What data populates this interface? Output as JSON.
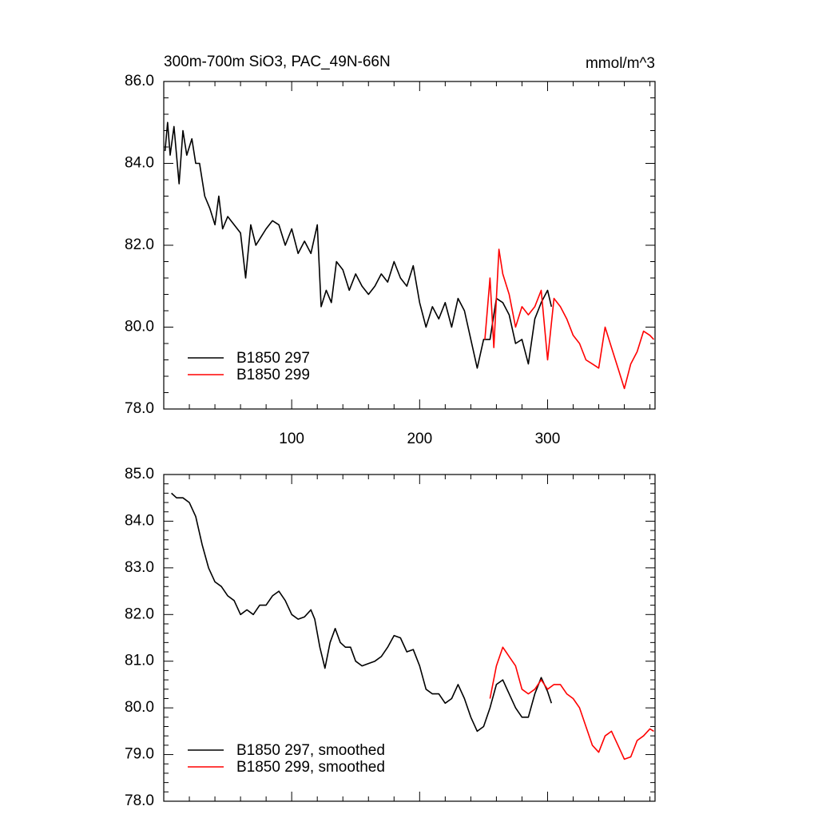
{
  "chart_data": [
    {
      "type": "line",
      "title": "300m-700m SiO3, PAC_49N-66N",
      "subtitle": "mmol/m^3",
      "xlim": [
        0,
        384
      ],
      "xticks": [
        100,
        200,
        300
      ],
      "xtick_labels": true,
      "ylim": [
        78,
        86
      ],
      "yticks": [
        {
          "value": 78,
          "label": "78.0"
        },
        {
          "value": 80,
          "label": "80.0"
        },
        {
          "value": 82,
          "label": "82.0"
        },
        {
          "value": 84,
          "label": "84.0"
        },
        {
          "value": 86,
          "label": "86.0"
        }
      ],
      "legend": "lower left",
      "series": [
        {
          "name": "B1850 297",
          "color": "#000000",
          "x": [
            1,
            3,
            5,
            8,
            12,
            15,
            18,
            22,
            25,
            28,
            32,
            36,
            40,
            43,
            46,
            50,
            55,
            60,
            64,
            68,
            72,
            76,
            80,
            85,
            90,
            95,
            100,
            105,
            110,
            115,
            120,
            123,
            127,
            131,
            135,
            140,
            145,
            150,
            155,
            160,
            165,
            170,
            175,
            180,
            185,
            190,
            195,
            200,
            205,
            210,
            215,
            220,
            225,
            230,
            235,
            240,
            245,
            250,
            255,
            260,
            265,
            270,
            275,
            280,
            285,
            290,
            295,
            300,
            303
          ],
          "values": [
            84.3,
            85.0,
            84.2,
            84.9,
            83.5,
            84.8,
            84.2,
            84.6,
            84.0,
            84.0,
            83.2,
            82.9,
            82.5,
            83.2,
            82.4,
            82.7,
            82.5,
            82.3,
            81.2,
            82.5,
            82.0,
            82.2,
            82.4,
            82.6,
            82.5,
            82.0,
            82.4,
            81.8,
            82.1,
            81.8,
            82.5,
            80.5,
            80.9,
            80.6,
            81.6,
            81.4,
            80.9,
            81.3,
            81.0,
            80.8,
            81.0,
            81.3,
            81.1,
            81.6,
            81.2,
            81.0,
            81.5,
            80.6,
            80.0,
            80.5,
            80.2,
            80.6,
            80.0,
            80.7,
            80.4,
            79.7,
            79.0,
            79.7,
            79.7,
            80.7,
            80.6,
            80.3,
            79.6,
            79.7,
            79.1,
            80.2,
            80.6,
            80.9,
            80.5
          ]
        },
        {
          "name": "B1850 299",
          "color": "#ff0000",
          "x": [
            251,
            255,
            258,
            262,
            265,
            270,
            275,
            280,
            285,
            290,
            295,
            300,
            305,
            310,
            315,
            320,
            325,
            330,
            335,
            340,
            345,
            350,
            355,
            360,
            365,
            370,
            375,
            380,
            383
          ],
          "values": [
            79.7,
            81.2,
            79.5,
            81.9,
            81.3,
            80.8,
            80.0,
            80.5,
            80.3,
            80.5,
            80.9,
            79.2,
            80.7,
            80.5,
            80.2,
            79.8,
            79.6,
            79.2,
            79.1,
            79.0,
            80.0,
            79.5,
            79.0,
            78.5,
            79.1,
            79.4,
            79.9,
            79.8,
            79.7
          ]
        }
      ]
    },
    {
      "type": "line",
      "xlim": [
        0,
        384
      ],
      "xticks": [
        100,
        200,
        300
      ],
      "xtick_labels": false,
      "ylim": [
        78,
        85
      ],
      "yticks": [
        {
          "value": 78,
          "label": "78.0"
        },
        {
          "value": 79,
          "label": "79.0"
        },
        {
          "value": 80,
          "label": "80.0"
        },
        {
          "value": 81,
          "label": "81.0"
        },
        {
          "value": 82,
          "label": "82.0"
        },
        {
          "value": 83,
          "label": "83.0"
        },
        {
          "value": 84,
          "label": "84.0"
        },
        {
          "value": 85,
          "label": "85.0"
        }
      ],
      "legend": "lower left",
      "series": [
        {
          "name": "B1850 297, smoothed",
          "color": "#000000",
          "x": [
            6,
            10,
            15,
            20,
            25,
            30,
            35,
            40,
            45,
            50,
            55,
            60,
            65,
            70,
            75,
            80,
            85,
            90,
            95,
            100,
            105,
            110,
            115,
            118,
            122,
            126,
            130,
            134,
            138,
            142,
            146,
            150,
            155,
            160,
            165,
            170,
            175,
            180,
            185,
            190,
            195,
            200,
            205,
            210,
            215,
            220,
            225,
            230,
            235,
            240,
            245,
            250,
            255,
            260,
            265,
            270,
            275,
            280,
            285,
            290,
            295,
            300,
            303
          ],
          "values": [
            84.6,
            84.5,
            84.5,
            84.4,
            84.1,
            83.5,
            83.0,
            82.7,
            82.6,
            82.4,
            82.3,
            82.0,
            82.1,
            82.0,
            82.2,
            82.2,
            82.4,
            82.5,
            82.3,
            82.0,
            81.9,
            81.95,
            82.1,
            81.9,
            81.3,
            80.85,
            81.4,
            81.7,
            81.4,
            81.3,
            81.3,
            81.0,
            80.9,
            80.95,
            81.0,
            81.1,
            81.3,
            81.55,
            81.5,
            81.2,
            81.25,
            80.9,
            80.4,
            80.3,
            80.3,
            80.1,
            80.2,
            80.5,
            80.2,
            79.8,
            79.5,
            79.6,
            80.0,
            80.5,
            80.6,
            80.3,
            80.0,
            79.8,
            79.8,
            80.3,
            80.65,
            80.35,
            80.1
          ]
        },
        {
          "name": "B1850 299, smoothed",
          "color": "#ff0000",
          "x": [
            255,
            260,
            265,
            270,
            275,
            280,
            285,
            290,
            295,
            300,
            305,
            310,
            315,
            320,
            325,
            330,
            335,
            340,
            345,
            350,
            355,
            360,
            365,
            370,
            375,
            380,
            383
          ],
          "values": [
            80.2,
            80.9,
            81.3,
            81.1,
            80.9,
            80.4,
            80.3,
            80.4,
            80.6,
            80.4,
            80.5,
            80.5,
            80.3,
            80.2,
            80.0,
            79.6,
            79.2,
            79.05,
            79.4,
            79.5,
            79.2,
            78.9,
            78.95,
            79.3,
            79.4,
            79.55,
            79.5
          ]
        }
      ]
    }
  ]
}
